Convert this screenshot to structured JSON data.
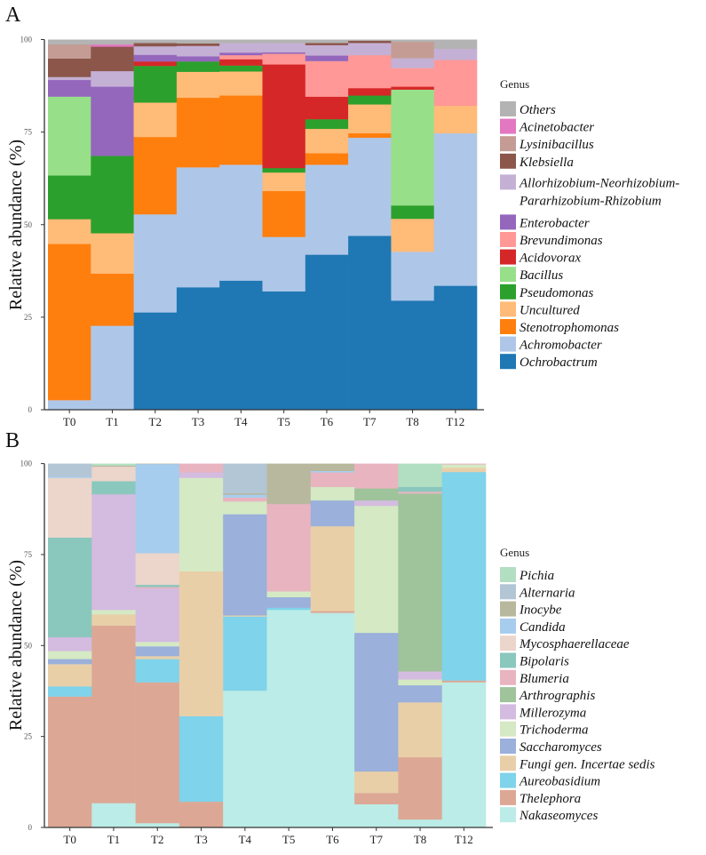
{
  "chart_data": [
    {
      "type": "bar",
      "stacked": true,
      "panel_label": "A",
      "ylabel": "Relative abundance (%)",
      "ylim": [
        0,
        100
      ],
      "yticks": [
        "0",
        "25",
        "50",
        "75",
        "100"
      ],
      "grid": false,
      "legend_title": "Genus",
      "legend_position": "right",
      "categories": [
        "T0",
        "T1",
        "T2",
        "T3",
        "T4",
        "T5",
        "T6",
        "T7",
        "T8",
        "T12"
      ],
      "series": [
        {
          "name": "Ochrobactrum",
          "color": "#1f77b4",
          "values": [
            0,
            0,
            26.3,
            33.1,
            34.9,
            32.0,
            41.9,
            47.0,
            29.5,
            33.5
          ]
        },
        {
          "name": "Achromobacter",
          "color": "#aec7e8",
          "values": [
            2.6,
            22.7,
            26.5,
            32.4,
            31.3,
            14.7,
            24.3,
            26.5,
            13.2,
            41.2
          ]
        },
        {
          "name": "Stenotrophomonas",
          "color": "#ff7f0e",
          "values": [
            42.2,
            14.1,
            20.9,
            18.8,
            18.7,
            12.4,
            3.1,
            1.2,
            0,
            0
          ]
        },
        {
          "name": "Uncultured",
          "color": "#ffbb78",
          "values": [
            6.7,
            10.9,
            9.3,
            7.0,
            6.5,
            5.0,
            6.6,
            7.8,
            8.9,
            7.4
          ]
        },
        {
          "name": "Pseudomonas",
          "color": "#2ca02c",
          "values": [
            11.8,
            20.9,
            9.9,
            2.8,
            1.6,
            1.2,
            2.6,
            2.4,
            3.6,
            0
          ]
        },
        {
          "name": "Bacillus",
          "color": "#98df8a",
          "values": [
            21.3,
            0,
            0,
            0,
            0,
            0,
            0,
            0,
            31.3,
            0
          ]
        },
        {
          "name": "Acidovorax",
          "color": "#d62728",
          "values": [
            0,
            0,
            1.2,
            0,
            1.7,
            28.0,
            6.1,
            2.0,
            0.8,
            0
          ]
        },
        {
          "name": "Brevundimonas",
          "color": "#ff9896",
          "values": [
            0,
            0,
            0,
            0,
            1.1,
            2.9,
            9.6,
            8.9,
            5.0,
            12.4
          ]
        },
        {
          "name": "Enterobacter",
          "color": "#9467bd",
          "values": [
            4.5,
            18.7,
            1.8,
            1.4,
            0.7,
            0.4,
            1.5,
            0,
            0,
            0
          ]
        },
        {
          "name": "Allorhizobium-Neorhizobium-Pararhizobium-Rhizobium",
          "color": "#c5b0d5",
          "values": [
            0.8,
            4.2,
            2.3,
            2.8,
            2.6,
            2.5,
            2.8,
            3.3,
            2.7,
            3.0
          ]
        },
        {
          "name": "Klebsiella",
          "color": "#8c564b",
          "values": [
            5.0,
            6.6,
            0.9,
            0.7,
            0,
            0,
            0.6,
            0.6,
            0,
            0
          ]
        },
        {
          "name": "Lysinibacillus",
          "color": "#c49c94",
          "values": [
            3.8,
            0,
            0,
            0,
            0,
            0,
            0,
            0,
            4.4,
            0
          ]
        },
        {
          "name": "Acinetobacter",
          "color": "#e377c2",
          "values": [
            0,
            0.6,
            0,
            0,
            0,
            0,
            0,
            0,
            0,
            0
          ]
        },
        {
          "name": "Others",
          "color": "#b3b3b3",
          "values": [
            1.3,
            1.3,
            0.9,
            1.0,
            0.9,
            0.9,
            0.9,
            0.3,
            0.6,
            2.5
          ]
        }
      ]
    },
    {
      "type": "bar",
      "stacked": true,
      "panel_label": "B",
      "ylabel": "Relative abundance (%)",
      "ylim": [
        0,
        100
      ],
      "yticks": [
        "0",
        "25",
        "50",
        "75",
        "100"
      ],
      "grid": false,
      "legend_title": "Genus",
      "legend_position": "right",
      "categories": [
        "T0",
        "T1",
        "T2",
        "T3",
        "T4",
        "T5",
        "T6",
        "T7",
        "T8",
        "T12"
      ],
      "series": [
        {
          "name": "Nakaseomyces",
          "color": "#bbece7",
          "values": [
            0,
            6.7,
            1.2,
            0,
            37.6,
            59.8,
            59.0,
            6.4,
            2.2,
            39.9
          ]
        },
        {
          "name": "Thelephora",
          "color": "#dca895",
          "values": [
            36.0,
            48.8,
            38.7,
            7.1,
            0,
            0,
            0.5,
            3.1,
            17.1,
            0.5
          ]
        },
        {
          "name": "Aureobasidium",
          "color": "#7fd3ea",
          "values": [
            2.8,
            0,
            6.4,
            23.5,
            20.4,
            0.6,
            0,
            0,
            0,
            57.3
          ]
        },
        {
          "name": "Fungi gen. Incertae sedis",
          "color": "#e9cfa8",
          "values": [
            6.1,
            3.1,
            0.8,
            39.8,
            0.3,
            0,
            23.3,
            5.9,
            15.1,
            1.2
          ]
        },
        {
          "name": "Saccharomyces",
          "color": "#9bb0da",
          "values": [
            1.4,
            0,
            2.7,
            0,
            27.8,
            2.9,
            7.1,
            38.1,
            4.7,
            0
          ]
        },
        {
          "name": "Trichoderma",
          "color": "#d4e9c4",
          "values": [
            2.2,
            1.2,
            1.2,
            25.7,
            3.5,
            1.6,
            3.7,
            34.9,
            1.6,
            0.9
          ]
        },
        {
          "name": "Millerozyma",
          "color": "#d4bbe0",
          "values": [
            3.8,
            31.8,
            14.7,
            1.5,
            0,
            0,
            0,
            1.5,
            2.2,
            0
          ]
        },
        {
          "name": "Arthrographis",
          "color": "#9fc39a",
          "values": [
            0,
            0,
            0,
            0,
            0,
            0,
            0,
            3.3,
            48.9,
            0
          ]
        },
        {
          "name": "Blumeria",
          "color": "#e8b4c0",
          "values": [
            0,
            0,
            0.4,
            2.4,
            1.1,
            24.0,
            4.0,
            6.8,
            0.5,
            0.2
          ]
        },
        {
          "name": "Bipolaris",
          "color": "#8ac7bd",
          "values": [
            27.4,
            3.6,
            0.6,
            0,
            0,
            0,
            0,
            0,
            1.3,
            0
          ]
        },
        {
          "name": "Mycosphaerellaceae",
          "color": "#ecd5cb",
          "values": [
            16.4,
            4.0,
            8.7,
            0,
            0,
            0,
            0,
            0,
            0,
            0
          ]
        },
        {
          "name": "Candida",
          "color": "#a6cdee",
          "values": [
            0.3,
            0,
            24.5,
            0,
            0.8,
            0,
            0.4,
            0,
            0,
            0
          ]
        },
        {
          "name": "Inocybe",
          "color": "#b8b89e",
          "values": [
            0,
            0.3,
            0.1,
            0,
            0.4,
            11.1,
            2.0,
            0,
            0,
            0
          ]
        },
        {
          "name": "Alternaria",
          "color": "#b3c6d6",
          "values": [
            3.6,
            0,
            0,
            0,
            8.1,
            0,
            0,
            0,
            0,
            0
          ]
        },
        {
          "name": "Pichia",
          "color": "#b2dfc1",
          "values": [
            0,
            0.5,
            0,
            0,
            0,
            0,
            0,
            0,
            6.4,
            0
          ]
        }
      ]
    }
  ]
}
